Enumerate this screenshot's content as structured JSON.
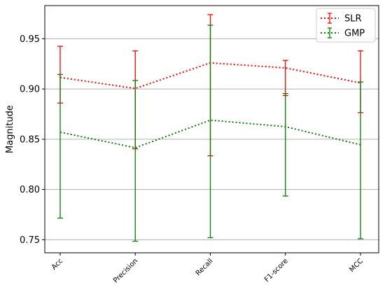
{
  "chart_data": {
    "type": "line",
    "title": "",
    "xlabel": "",
    "ylabel": "Magnitude",
    "categories": [
      "Acc",
      "Precision",
      "Recall",
      "F1-score",
      "MCC"
    ],
    "ylim": [
      0.737,
      0.983
    ],
    "yticks": [
      "0.75",
      "0.80",
      "0.85",
      "0.90",
      "0.95"
    ],
    "grid": "horizontal",
    "legend": "top-right",
    "series": [
      {
        "name": "SLR",
        "color": "#ff0000",
        "values": [
          0.9115,
          0.9005,
          0.926,
          0.921,
          0.906
        ],
        "lower": [
          0.886,
          0.8405,
          0.8335,
          0.8935,
          0.8765
        ],
        "upper": [
          0.9425,
          0.938,
          0.974,
          0.9285,
          0.938
        ]
      },
      {
        "name": "GMP",
        "color": "#008000",
        "values": [
          0.857,
          0.8415,
          0.869,
          0.8625,
          0.8445
        ],
        "lower": [
          0.7715,
          0.7485,
          0.752,
          0.7935,
          0.751
        ],
        "upper": [
          0.9145,
          0.9085,
          0.9635,
          0.8955,
          0.907
        ]
      }
    ]
  }
}
